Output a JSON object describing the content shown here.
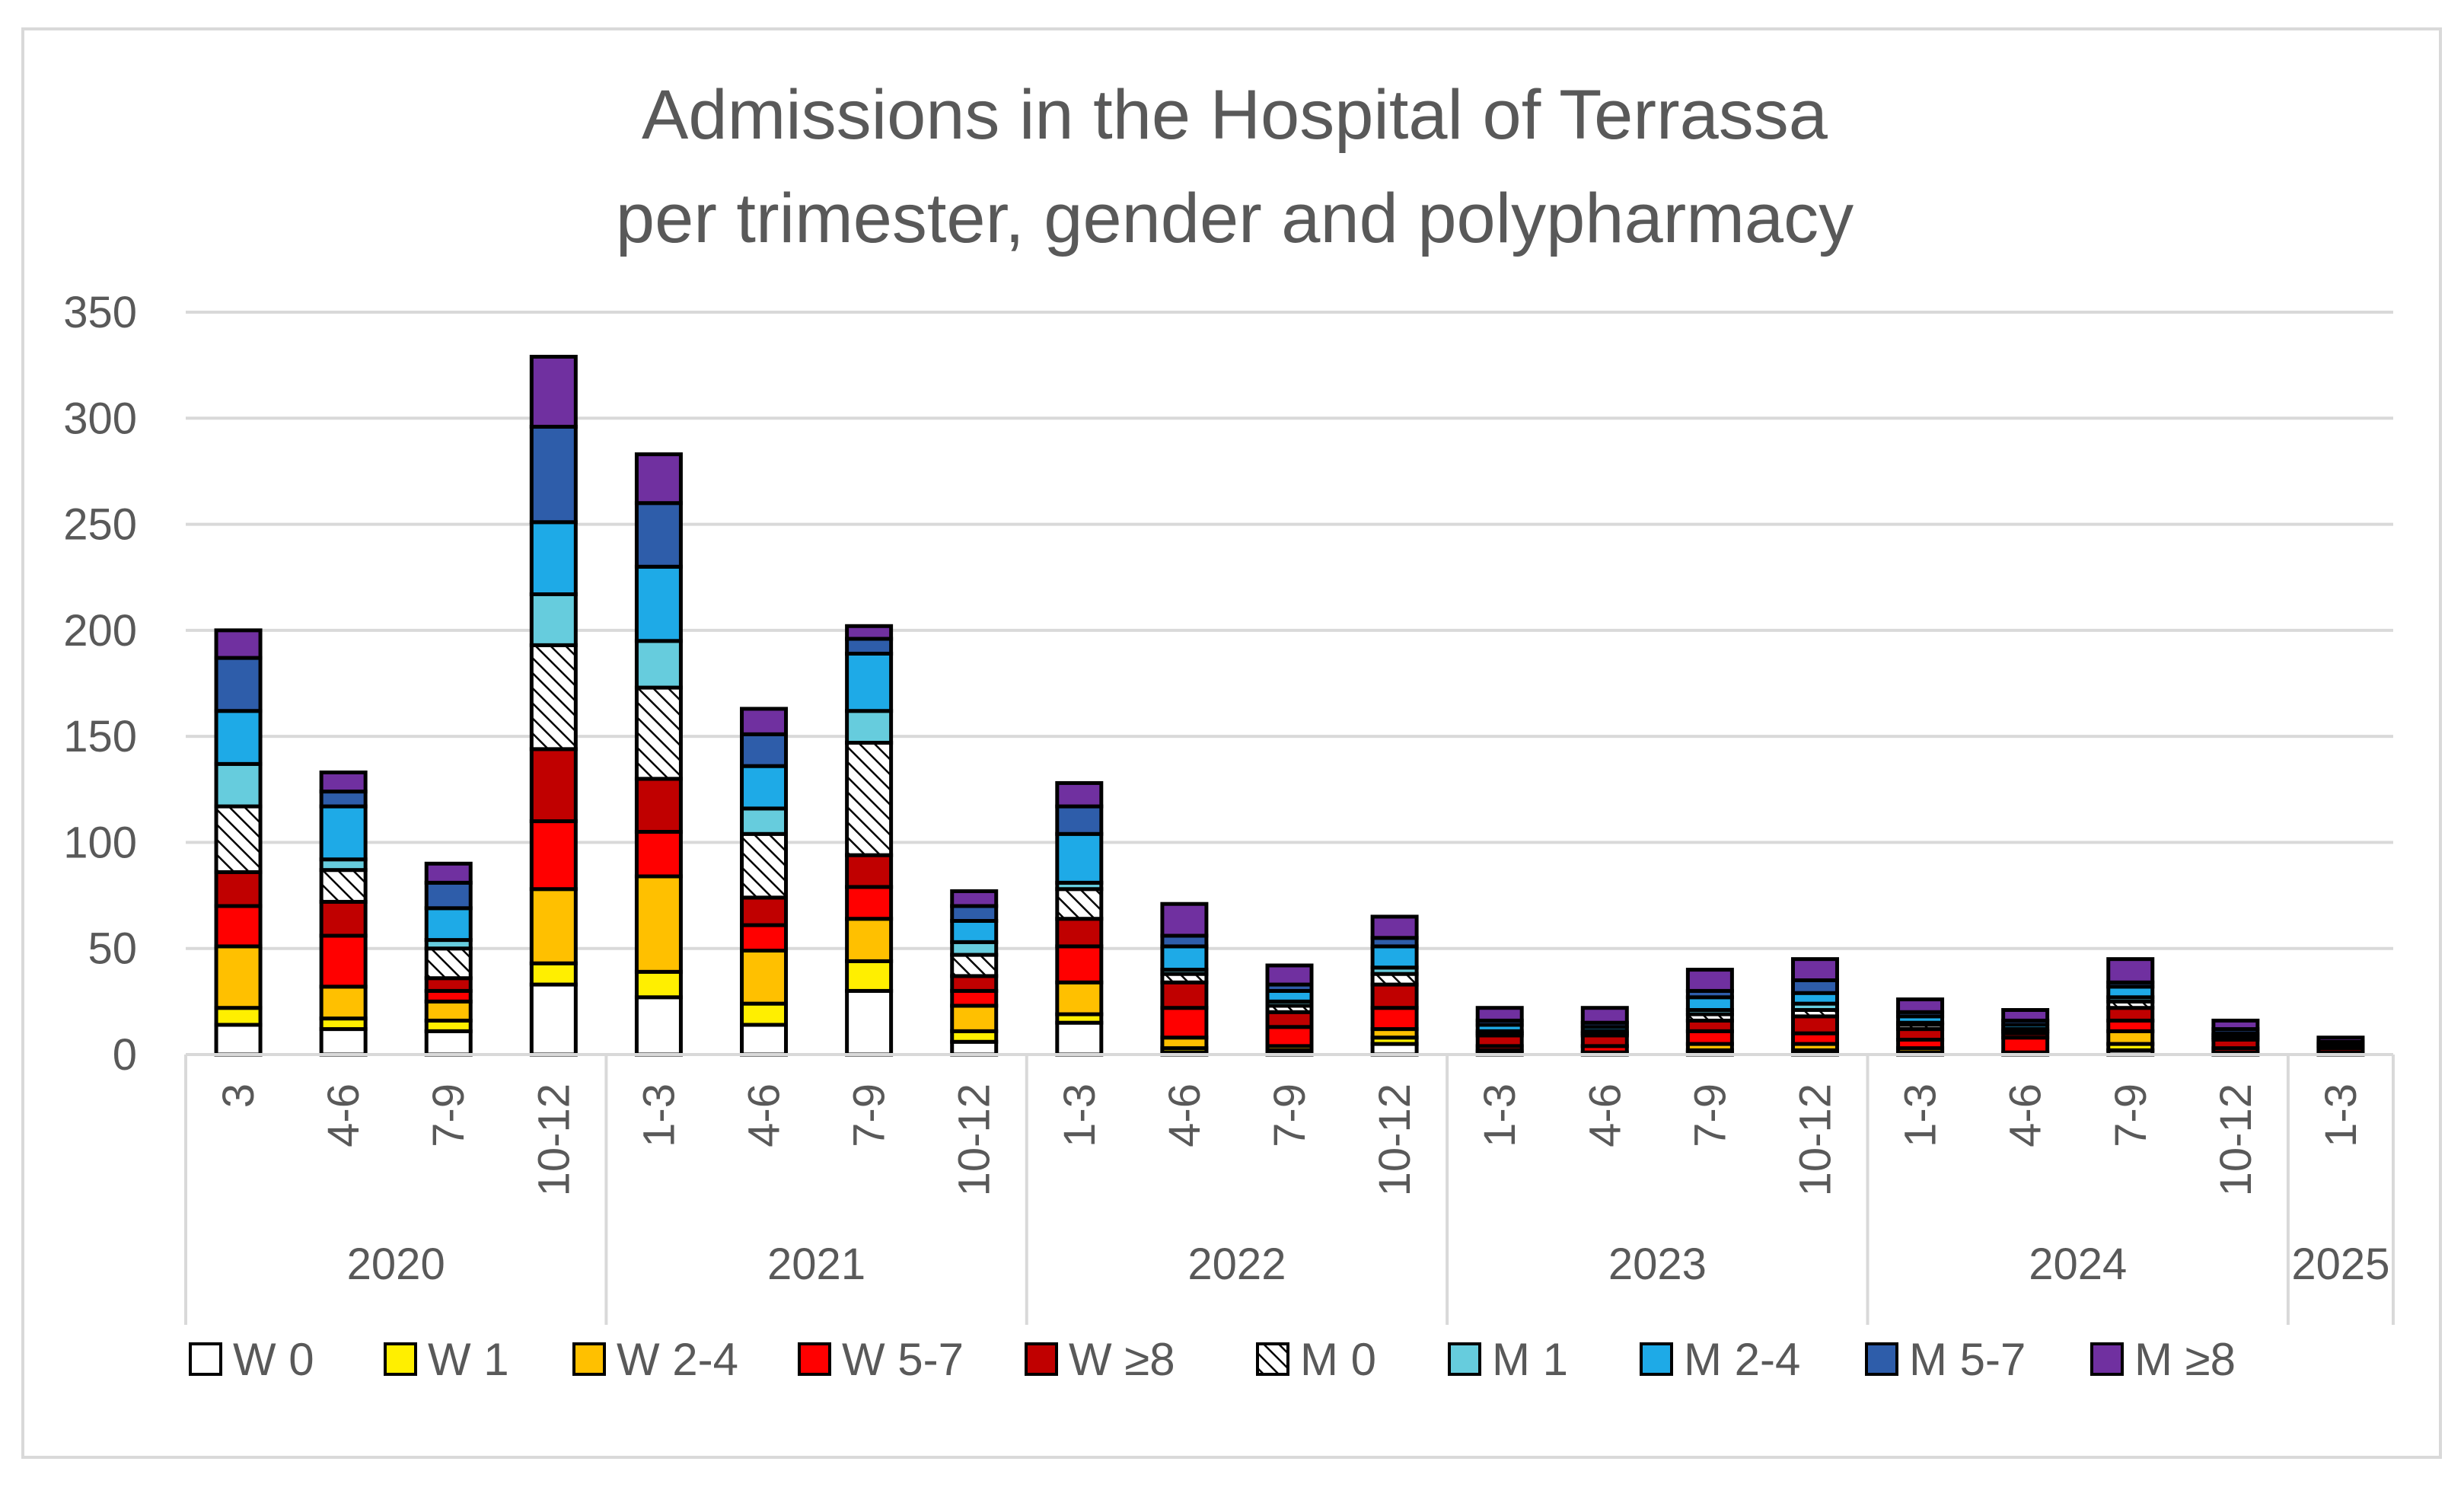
{
  "chart_data": {
    "type": "bar",
    "stacked": true,
    "title": "Admissions in the Hospital of Terrassa",
    "subtitle": "per trimester, gender and polypharmacy",
    "xlabel": "",
    "ylabel": "",
    "ylim": [
      0,
      350
    ],
    "yticks": [
      0,
      50,
      100,
      150,
      200,
      250,
      300,
      350
    ],
    "grid": true,
    "legend_position": "bottom",
    "groups": [
      {
        "label": "2020",
        "categories": [
          "3",
          "4-6",
          "7-9",
          "10-12"
        ]
      },
      {
        "label": "2021",
        "categories": [
          "1-3",
          "4-6",
          "7-9",
          "10-12"
        ]
      },
      {
        "label": "2022",
        "categories": [
          "1-3",
          "4-6",
          "7-9",
          "10-12"
        ]
      },
      {
        "label": "2023",
        "categories": [
          "1-3",
          "4-6",
          "7-9",
          "10-12"
        ]
      },
      {
        "label": "2024",
        "categories": [
          "1-3",
          "4-6",
          "7-9",
          "10-12"
        ]
      },
      {
        "label": "2025",
        "categories": [
          "1-3"
        ]
      }
    ],
    "series": [
      {
        "name": "W 0",
        "color": "#ffffff",
        "pattern": "none",
        "values": [
          14,
          12,
          11,
          33,
          27,
          14,
          30,
          6,
          15,
          1,
          1,
          5,
          0,
          0,
          1,
          1,
          0,
          0,
          2,
          0,
          0
        ]
      },
      {
        "name": "W 1",
        "color": "#ffef00",
        "pattern": "none",
        "values": [
          8,
          5,
          5,
          10,
          12,
          10,
          14,
          5,
          4,
          2,
          1,
          3,
          1,
          0,
          1,
          1,
          1,
          0,
          3,
          0,
          0
        ]
      },
      {
        "name": "W 2-4",
        "color": "#ffc000",
        "pattern": "none",
        "values": [
          29,
          15,
          9,
          35,
          45,
          25,
          20,
          12,
          15,
          5,
          2,
          4,
          1,
          1,
          3,
          3,
          2,
          1,
          6,
          1,
          0
        ]
      },
      {
        "name": "W 5-7",
        "color": "#ff0000",
        "pattern": "none",
        "values": [
          19,
          24,
          5,
          32,
          21,
          12,
          15,
          7,
          17,
          14,
          9,
          10,
          2,
          3,
          6,
          5,
          4,
          7,
          5,
          2,
          1
        ]
      },
      {
        "name": "W ≥8",
        "color": "#c00000",
        "pattern": "none",
        "values": [
          16,
          16,
          6,
          34,
          25,
          13,
          15,
          7,
          13,
          12,
          7,
          11,
          5,
          5,
          5,
          8,
          5,
          2,
          6,
          4,
          2
        ]
      },
      {
        "name": "M 0",
        "color": "#ffffff",
        "pattern": "hatch",
        "values": [
          31,
          15,
          14,
          49,
          43,
          30,
          53,
          10,
          14,
          4,
          3,
          5,
          1,
          1,
          3,
          3,
          2,
          1,
          3,
          1,
          1
        ]
      },
      {
        "name": "M 1",
        "color": "#66ccdd",
        "pattern": "none",
        "values": [
          20,
          5,
          4,
          24,
          22,
          12,
          15,
          6,
          3,
          2,
          2,
          3,
          1,
          1,
          2,
          3,
          1,
          1,
          2,
          1,
          0
        ]
      },
      {
        "name": "M 2-4",
        "color": "#1eaae7",
        "pattern": "none",
        "values": [
          25,
          25,
          15,
          34,
          35,
          20,
          27,
          10,
          23,
          11,
          5,
          10,
          3,
          2,
          6,
          5,
          3,
          2,
          5,
          1,
          1
        ]
      },
      {
        "name": "M 5-7",
        "color": "#2e5daa",
        "pattern": "none",
        "values": [
          25,
          7,
          12,
          45,
          30,
          15,
          7,
          7,
          13,
          5,
          3,
          4,
          2,
          2,
          3,
          6,
          2,
          2,
          2,
          2,
          1
        ]
      },
      {
        "name": "M ≥8",
        "color": "#7030a0",
        "pattern": "none",
        "values": [
          13,
          9,
          9,
          33,
          23,
          12,
          6,
          7,
          11,
          15,
          9,
          10,
          6,
          7,
          10,
          10,
          6,
          5,
          11,
          4,
          2
        ]
      }
    ]
  }
}
